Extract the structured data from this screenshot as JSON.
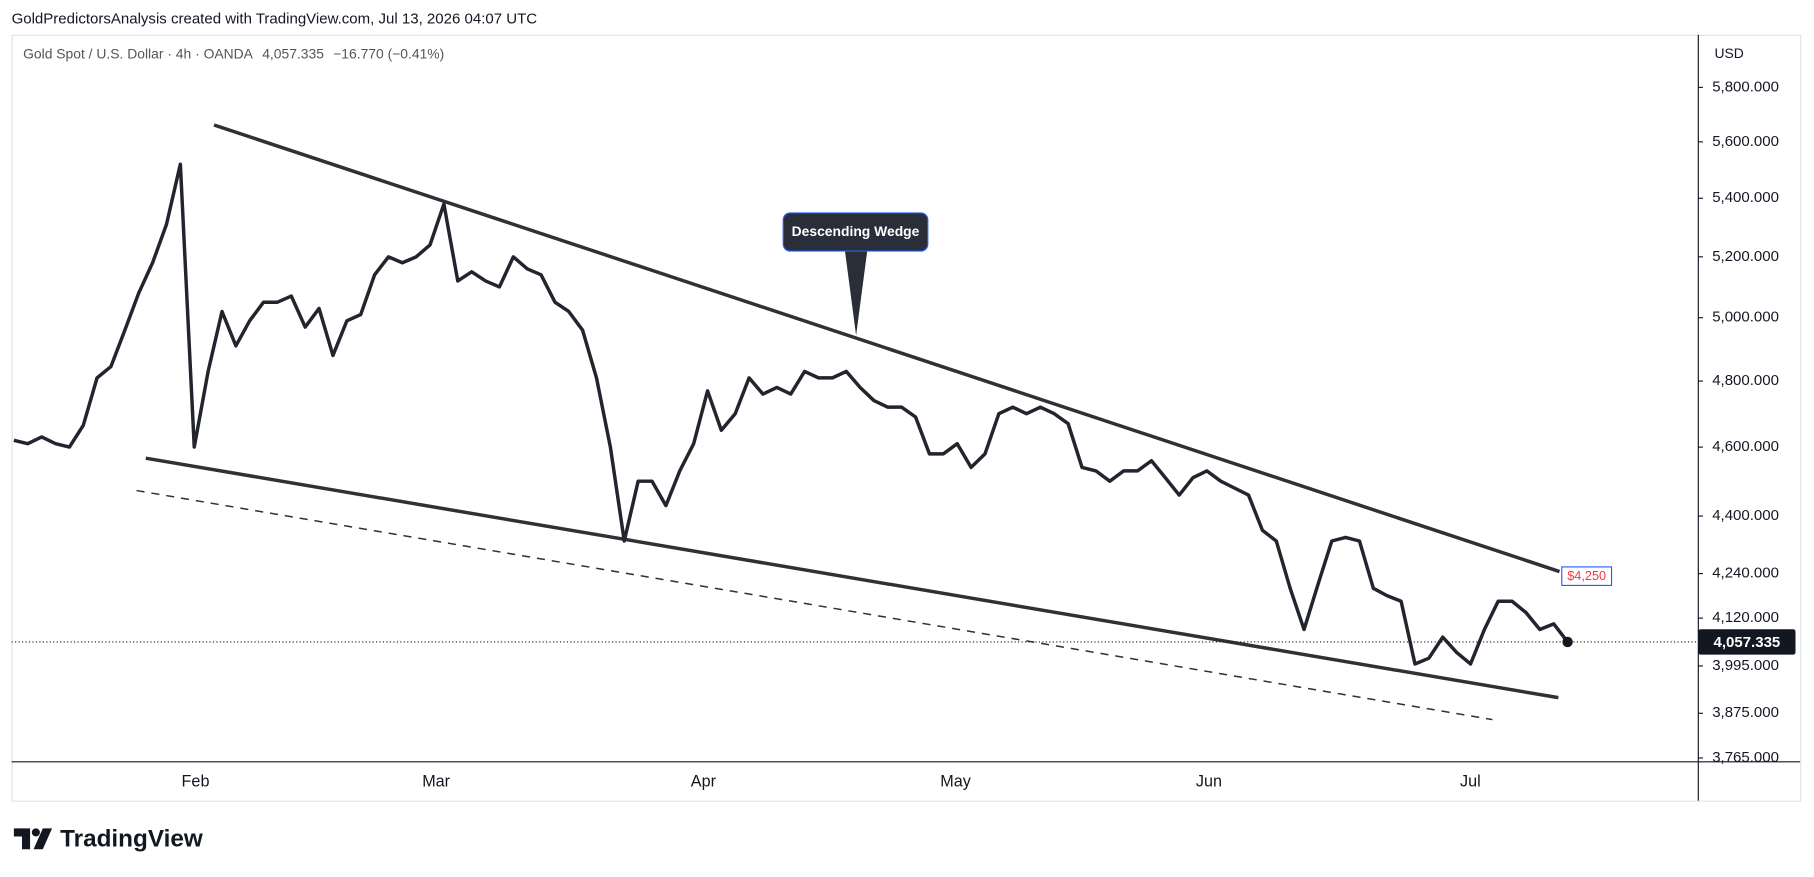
{
  "header": "GoldPredictorsAnalysis created with TradingView.com, Jul 13, 2026 04:07 UTC",
  "brand": "TradingView",
  "chart_data": {
    "type": "line",
    "title": "Gold Spot / U.S. Dollar · 4h · OANDA",
    "last_price_label": "4,057.335",
    "change": "−16.770 (−0.41%)",
    "currency": "USD",
    "annotations": [
      "Descending Wedge",
      "$4,250"
    ],
    "xtick_labels": [
      "Feb",
      "Mar",
      "Apr",
      "May",
      "Jun",
      "Jul"
    ],
    "log_scale": true,
    "ylim": [
      3757,
      6000
    ],
    "yticks": [
      {
        "value": 5800,
        "label": "5,800.000"
      },
      {
        "value": 5600,
        "label": "5,600.000"
      },
      {
        "value": 5400,
        "label": "5,400.000"
      },
      {
        "value": 5200,
        "label": "5,200.000"
      },
      {
        "value": 5000,
        "label": "5,000.000"
      },
      {
        "value": 4800,
        "label": "4,800.000"
      },
      {
        "value": 4600,
        "label": "4,600.000"
      },
      {
        "value": 4400,
        "label": "4,400.000"
      },
      {
        "value": 4240,
        "label": "4,240.000"
      },
      {
        "value": 4120,
        "label": "4,120.000"
      },
      {
        "value": 3995,
        "label": "3,995.000"
      },
      {
        "value": 3875,
        "label": "3,875.000"
      },
      {
        "value": 3765,
        "label": "3,765.000"
      }
    ],
    "series": [
      {
        "color": "#22252e",
        "values": [
          4620,
          4610,
          4630,
          4610,
          4600,
          4665,
          4810,
          4845,
          4960,
          5080,
          5180,
          5310,
          5520,
          4600,
          4830,
          5020,
          4910,
          4990,
          5050,
          5050,
          5070,
          4970,
          5030,
          4880,
          4990,
          5010,
          5140,
          5200,
          5180,
          5200,
          5240,
          5380,
          5120,
          5150,
          5120,
          5100,
          5200,
          5160,
          5140,
          5050,
          5020,
          4960,
          4810,
          4600,
          4330,
          4500,
          4500,
          4430,
          4530,
          4610,
          4770,
          4650,
          4700,
          4810,
          4760,
          4780,
          4760,
          4830,
          4810,
          4810,
          4830,
          4780,
          4740,
          4720,
          4720,
          4690,
          4580,
          4580,
          4610,
          4540,
          4580,
          4700,
          4720,
          4700,
          4720,
          4700,
          4670,
          4540,
          4530,
          4500,
          4530,
          4530,
          4560,
          4510,
          4460,
          4510,
          4530,
          4500,
          4480,
          4460,
          4360,
          4330,
          4200,
          4090,
          4210,
          4330,
          4340,
          4330,
          4200,
          4180,
          4165,
          4000,
          4015,
          4070,
          4030,
          4000,
          4090,
          4165,
          4165,
          4135,
          4090,
          4105,
          4057.335
        ]
      }
    ]
  }
}
